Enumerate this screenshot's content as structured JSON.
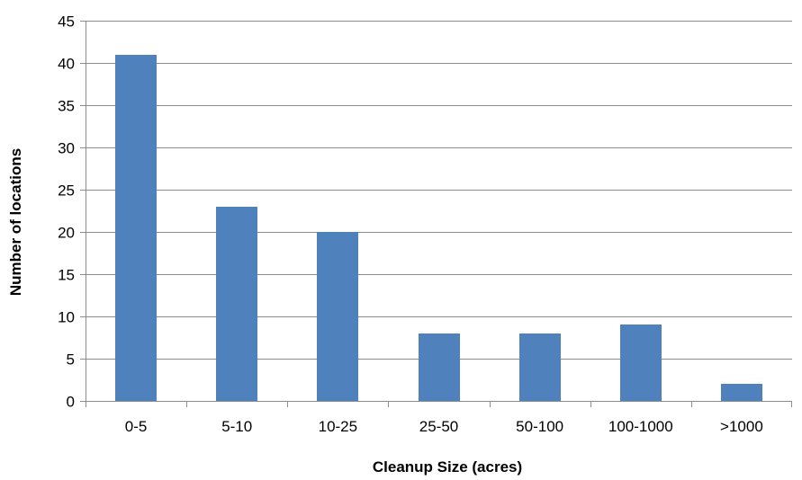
{
  "chart_data": {
    "type": "bar",
    "categories": [
      "0-5",
      "5-10",
      "10-25",
      "25-50",
      "50-100",
      "100-1000",
      ">1000"
    ],
    "values": [
      41,
      23,
      20,
      8,
      8,
      9,
      2
    ],
    "xlabel": "Cleanup Size (acres)",
    "ylabel": "Number of locations",
    "ylim": [
      0,
      45
    ],
    "yticks": [
      0,
      5,
      10,
      15,
      20,
      25,
      30,
      35,
      40,
      45
    ],
    "grid": true,
    "legend": "none",
    "bar_color": "#4f81bd",
    "grid_color": "#8c8c8c"
  }
}
